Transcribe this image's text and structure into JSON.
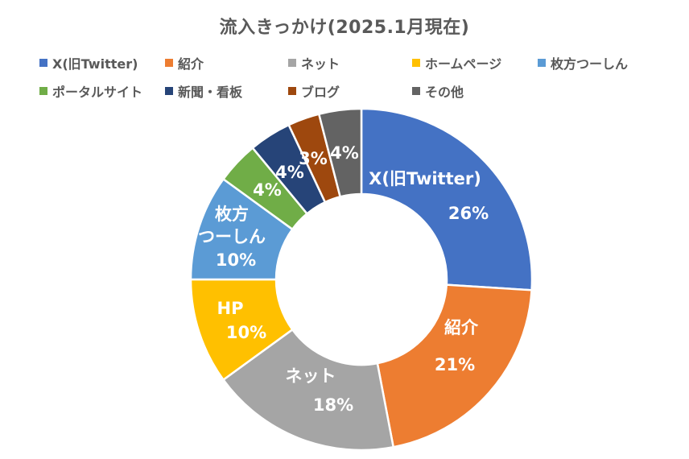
{
  "chart_data": {
    "type": "pie",
    "title": "流入きっかけ(2025.1月現在)",
    "series": [
      {
        "name": "X(旧Twitter)",
        "value": 26,
        "value_label": "26%",
        "slice_label": [
          "X(旧Twitter)"
        ],
        "color": "#4472C4"
      },
      {
        "name": "紹介",
        "value": 21,
        "value_label": "21%",
        "slice_label": [
          "紹介"
        ],
        "color": "#ED7D31"
      },
      {
        "name": "ネット",
        "value": 18,
        "value_label": "18%",
        "slice_label": [
          "ネット"
        ],
        "color": "#A5A5A5"
      },
      {
        "name": "ホームページ",
        "value": 10,
        "value_label": "10%",
        "slice_label": [
          "HP"
        ],
        "color": "#FFC000"
      },
      {
        "name": "枚方つーしん",
        "value": 10,
        "value_label": "10%",
        "slice_label": [
          "枚方",
          "つーしん"
        ],
        "color": "#5B9BD5"
      },
      {
        "name": "ポータルサイト",
        "value": 4,
        "value_label": "4%",
        "slice_label": [],
        "color": "#70AD47"
      },
      {
        "name": "新聞・看板",
        "value": 4,
        "value_label": "4%",
        "slice_label": [],
        "color": "#264478"
      },
      {
        "name": "ブログ",
        "value": 3,
        "value_label": "3%",
        "slice_label": [],
        "color": "#9E480E"
      },
      {
        "name": "その他",
        "value": 4,
        "value_label": "4%",
        "slice_label": [],
        "color": "#636363"
      }
    ],
    "legend_position": "top",
    "donut": true
  }
}
